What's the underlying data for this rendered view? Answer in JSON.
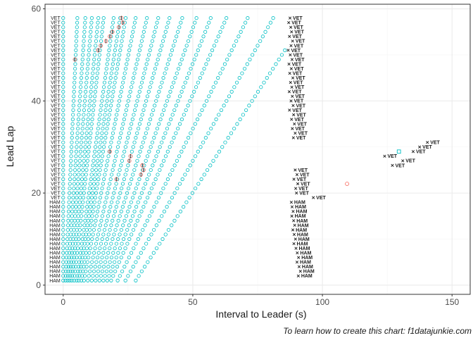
{
  "chart_data": {
    "type": "scatter",
    "xlabel": "Interval to Leader (s)",
    "ylabel": "Lead Lap",
    "caption": "To learn how to create this chart: f1datajunkie.com",
    "xlim": [
      -7,
      157
    ],
    "ylim": [
      -2,
      61
    ],
    "x_ticks": [
      0,
      50,
      100,
      150
    ],
    "y_ticks": [
      0,
      20,
      40,
      60
    ],
    "grid": true,
    "legend": "none",
    "colors": {
      "series": "#00bfc4",
      "pit": "#f8766d",
      "retired": "#f8766d",
      "background": "#ffffff",
      "border": "#333333",
      "grid_major": "#ebebeb",
      "grid_minor": "#f5f5f5",
      "marker_text": "#1a1a1a"
    },
    "driver_codes": {
      "vet": "VET",
      "ham": "HAM"
    },
    "left_labels": [
      {
        "y": 58,
        "text": "VET"
      },
      {
        "y": 57,
        "text": "VET"
      },
      {
        "y": 56,
        "text": "VET"
      },
      {
        "y": 55,
        "text": "VET"
      },
      {
        "y": 54,
        "text": "VET"
      },
      {
        "y": 53,
        "text": "VET"
      },
      {
        "y": 52,
        "text": "VET"
      },
      {
        "y": 51,
        "text": "VET"
      },
      {
        "y": 50,
        "text": "VET"
      },
      {
        "y": 49,
        "text": "VET"
      },
      {
        "y": 48,
        "text": "VET"
      },
      {
        "y": 47,
        "text": "VET"
      },
      {
        "y": 46,
        "text": "VET"
      },
      {
        "y": 45,
        "text": "VET"
      },
      {
        "y": 44,
        "text": "VET"
      },
      {
        "y": 43,
        "text": "VET"
      },
      {
        "y": 42,
        "text": "VET"
      },
      {
        "y": 41,
        "text": "VET"
      },
      {
        "y": 40,
        "text": "VET"
      },
      {
        "y": 39,
        "text": "VET"
      },
      {
        "y": 38,
        "text": "VET"
      },
      {
        "y": 37,
        "text": "VET"
      },
      {
        "y": 36,
        "text": "VET"
      },
      {
        "y": 35,
        "text": "VET"
      },
      {
        "y": 34,
        "text": "VET"
      },
      {
        "y": 33,
        "text": "VET"
      },
      {
        "y": 32,
        "text": "VET"
      },
      {
        "y": 31,
        "text": "VET"
      },
      {
        "y": 30,
        "text": "VET"
      },
      {
        "y": 29,
        "text": "VET"
      },
      {
        "y": 28,
        "text": "VET"
      },
      {
        "y": 27,
        "text": "VET"
      },
      {
        "y": 26,
        "text": "VET"
      },
      {
        "y": 25,
        "text": "VET"
      },
      {
        "y": 24,
        "text": "VET"
      },
      {
        "y": 23,
        "text": "VET"
      },
      {
        "y": 22,
        "text": "VET"
      },
      {
        "y": 21,
        "text": "VET"
      },
      {
        "y": 20,
        "text": "VET"
      },
      {
        "y": 19,
        "text": "VET"
      },
      {
        "y": 18,
        "text": "HAM"
      },
      {
        "y": 17,
        "text": "HAM"
      },
      {
        "y": 16,
        "text": "HAM"
      },
      {
        "y": 15,
        "text": "HAM"
      },
      {
        "y": 14,
        "text": "HAM"
      },
      {
        "y": 13,
        "text": "HAM"
      },
      {
        "y": 12,
        "text": "HAM"
      },
      {
        "y": 11,
        "text": "HAM"
      },
      {
        "y": 10,
        "text": "HAM"
      },
      {
        "y": 9,
        "text": "HAM"
      },
      {
        "y": 8,
        "text": "HAM"
      },
      {
        "y": 7,
        "text": "HAM"
      },
      {
        "y": 6,
        "text": "HAM"
      },
      {
        "y": 5,
        "text": "HAM"
      },
      {
        "y": 4,
        "text": "HAM"
      },
      {
        "y": 3,
        "text": "HAM"
      },
      {
        "y": 2,
        "text": "HAM"
      },
      {
        "y": 1,
        "text": "HAM"
      }
    ],
    "lapped_markers": [
      {
        "x": 87.5,
        "y": 58,
        "code": "VET"
      },
      {
        "x": 87.0,
        "y": 57,
        "code": "VET"
      },
      {
        "x": 87.8,
        "y": 56,
        "code": "VET"
      },
      {
        "x": 88.1,
        "y": 55,
        "code": "VET"
      },
      {
        "x": 87.3,
        "y": 54,
        "code": "VET"
      },
      {
        "x": 88.5,
        "y": 53,
        "code": "VET"
      },
      {
        "x": 87.9,
        "y": 52,
        "code": "VET"
      },
      {
        "x": 86.8,
        "y": 51,
        "code": "VET"
      },
      {
        "x": 87.6,
        "y": 50,
        "code": "VET"
      },
      {
        "x": 88.3,
        "y": 49,
        "code": "VET"
      },
      {
        "x": 87.1,
        "y": 48,
        "code": "VET"
      },
      {
        "x": 88.0,
        "y": 47,
        "code": "VET"
      },
      {
        "x": 87.4,
        "y": 46,
        "code": "VET"
      },
      {
        "x": 88.6,
        "y": 45,
        "code": "VET"
      },
      {
        "x": 87.7,
        "y": 44,
        "code": "VET"
      },
      {
        "x": 88.2,
        "y": 43,
        "code": "VET"
      },
      {
        "x": 87.2,
        "y": 42,
        "code": "VET"
      },
      {
        "x": 88.4,
        "y": 41,
        "code": "VET"
      },
      {
        "x": 87.9,
        "y": 40,
        "code": "VET"
      },
      {
        "x": 88.7,
        "y": 39,
        "code": "VET"
      },
      {
        "x": 87.3,
        "y": 38,
        "code": "VET"
      },
      {
        "x": 88.9,
        "y": 37,
        "code": "VET"
      },
      {
        "x": 88.1,
        "y": 36,
        "code": "VET"
      },
      {
        "x": 89.2,
        "y": 35,
        "code": "VET"
      },
      {
        "x": 88.4,
        "y": 34,
        "code": "VET"
      },
      {
        "x": 89.5,
        "y": 33,
        "code": "VET"
      },
      {
        "x": 88.8,
        "y": 32,
        "code": "VET"
      },
      {
        "x": 140.5,
        "y": 31,
        "code": "VET"
      },
      {
        "x": 137.5,
        "y": 30,
        "code": "VET"
      },
      {
        "x": 135.0,
        "y": 29,
        "code": "VET"
      },
      {
        "x": 124.0,
        "y": 28,
        "code": "VET"
      },
      {
        "x": 131.0,
        "y": 27,
        "code": "VET"
      },
      {
        "x": 127.0,
        "y": 26,
        "code": "VET"
      },
      {
        "x": 89.5,
        "y": 25,
        "code": "VET"
      },
      {
        "x": 90.2,
        "y": 24,
        "code": "VET"
      },
      {
        "x": 89.0,
        "y": 23,
        "code": "VET"
      },
      {
        "x": 90.5,
        "y": 22,
        "code": "VET"
      },
      {
        "x": 89.7,
        "y": 21,
        "code": "VET"
      },
      {
        "x": 90.0,
        "y": 20,
        "code": "VET"
      },
      {
        "x": 96.5,
        "y": 19,
        "code": "VET"
      },
      {
        "x": 88.0,
        "y": 18,
        "code": "HAM"
      },
      {
        "x": 88.3,
        "y": 17,
        "code": "HAM"
      },
      {
        "x": 88.7,
        "y": 16,
        "code": "HAM"
      },
      {
        "x": 88.2,
        "y": 15,
        "code": "HAM"
      },
      {
        "x": 88.9,
        "y": 14,
        "code": "HAM"
      },
      {
        "x": 89.3,
        "y": 13,
        "code": "HAM"
      },
      {
        "x": 88.6,
        "y": 12,
        "code": "HAM"
      },
      {
        "x": 89.1,
        "y": 11,
        "code": "HAM"
      },
      {
        "x": 89.6,
        "y": 10,
        "code": "HAM"
      },
      {
        "x": 89.0,
        "y": 9,
        "code": "HAM"
      },
      {
        "x": 89.8,
        "y": 8,
        "code": "HAM"
      },
      {
        "x": 90.3,
        "y": 7,
        "code": "HAM"
      },
      {
        "x": 90.8,
        "y": 6,
        "code": "HAM"
      },
      {
        "x": 90.2,
        "y": 5,
        "code": "HAM"
      },
      {
        "x": 91.0,
        "y": 4,
        "code": "HAM"
      },
      {
        "x": 91.5,
        "y": 3,
        "code": "HAM"
      },
      {
        "x": 90.7,
        "y": 2,
        "code": "HAM"
      }
    ],
    "pit_points": [
      {
        "x": 22.5,
        "y": 58
      },
      {
        "x": 23.0,
        "y": 57
      },
      {
        "x": 21.5,
        "y": 56
      },
      {
        "x": 19.0,
        "y": 55
      },
      {
        "x": 18.0,
        "y": 54
      },
      {
        "x": 16.5,
        "y": 53
      },
      {
        "x": 14.5,
        "y": 52
      },
      {
        "x": 13.5,
        "y": 51
      },
      {
        "x": 4.5,
        "y": 49
      },
      {
        "x": 18.0,
        "y": 29
      },
      {
        "x": 26.0,
        "y": 28
      },
      {
        "x": 25.5,
        "y": 27
      },
      {
        "x": 30.5,
        "y": 26
      },
      {
        "x": 31.0,
        "y": 25
      },
      {
        "x": 30.0,
        "y": 24
      },
      {
        "x": 20.5,
        "y": 23
      }
    ],
    "retired_points": [
      {
        "x": 109.5,
        "y": 22
      }
    ],
    "square_points": [
      {
        "x": 129.5,
        "y": 29
      }
    ],
    "driver_gaps": [
      {
        "driver": "d02",
        "x0": 0.9,
        "slope": 0.08
      },
      {
        "driver": "d03",
        "x0": 1.7,
        "slope": 0.12
      },
      {
        "driver": "d04",
        "x0": 2.5,
        "slope": 0.15
      },
      {
        "driver": "d05",
        "x0": 3.3,
        "slope": 0.18
      },
      {
        "driver": "d06",
        "x0": 4.2,
        "slope": 0.2
      },
      {
        "driver": "d07",
        "x0": 5.2,
        "slope": 0.25
      },
      {
        "driver": "d08",
        "x0": 6.0,
        "slope": 0.28
      },
      {
        "driver": "d09",
        "x0": 7.0,
        "slope": 0.3
      },
      {
        "driver": "d10",
        "x0": 8.0,
        "slope": 0.35
      },
      {
        "driver": "d11",
        "x0": 9.5,
        "slope": 0.4
      },
      {
        "driver": "d12",
        "x0": 11.0,
        "slope": 0.45
      },
      {
        "driver": "d13",
        "x0": 12.5,
        "slope": 0.5
      },
      {
        "driver": "d14",
        "x0": 14.0,
        "slope": 0.56
      },
      {
        "driver": "d15",
        "x0": 15.5,
        "slope": 0.63
      },
      {
        "driver": "d16",
        "x0": 17.0,
        "slope": 0.7
      },
      {
        "driver": "d17",
        "x0": 18.5,
        "slope": 0.78
      },
      {
        "driver": "d18",
        "x0": 21.0,
        "slope": 0.88
      },
      {
        "driver": "d19",
        "x0": 24.0,
        "slope": 1.0
      },
      {
        "driver": "d20",
        "x0": 28.0,
        "slope": 1.15
      }
    ]
  }
}
